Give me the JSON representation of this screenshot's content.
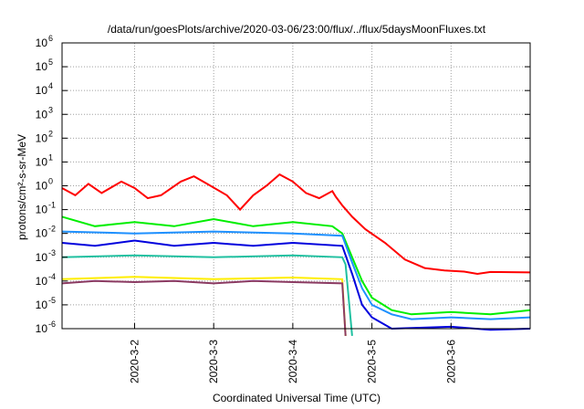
{
  "chart_data": {
    "type": "line",
    "title": "/data/run/goesPlots/archive/2020-03-06/23:00/flux/../flux/5daysMoonFluxes.txt",
    "xlabel": "Coordinated Universal Time (UTC)",
    "ylabel": "protons/cm²-s-sr-MeV",
    "yscale": "log",
    "ylim": [
      1e-06,
      1000000.0
    ],
    "xlim": [
      "2020-03-01T02:00",
      "2020-03-07T00:00"
    ],
    "x_ticks": [
      "2020-3-2",
      "2020-3-3",
      "2020-3-4",
      "2020-3-5",
      "2020-3-6"
    ],
    "y_ticks": [
      {
        "base": "10",
        "exp": "-6"
      },
      {
        "base": "10",
        "exp": "-5"
      },
      {
        "base": "10",
        "exp": "-4"
      },
      {
        "base": "10",
        "exp": "-3"
      },
      {
        "base": "10",
        "exp": "-2"
      },
      {
        "base": "10",
        "exp": "-1"
      },
      {
        "base": "10",
        "exp": "0"
      },
      {
        "base": "10",
        "exp": "1"
      },
      {
        "base": "10",
        "exp": "2"
      },
      {
        "base": "10",
        "exp": "3"
      },
      {
        "base": "10",
        "exp": "4"
      },
      {
        "base": "10",
        "exp": "5"
      },
      {
        "base": "10",
        "exp": "6"
      }
    ],
    "grid": true,
    "series": [
      {
        "color": "#ff0000",
        "points": [
          [
            "2020-03-01T02:00",
            0.8
          ],
          [
            "2020-03-01T06:00",
            0.4
          ],
          [
            "2020-03-01T10:00",
            1.2
          ],
          [
            "2020-03-01T14:00",
            0.5
          ],
          [
            "2020-03-01T20:00",
            1.5
          ],
          [
            "2020-03-02T00:00",
            0.8
          ],
          [
            "2020-03-02T04:00",
            0.3
          ],
          [
            "2020-03-02T08:00",
            0.4
          ],
          [
            "2020-03-02T14:00",
            1.5
          ],
          [
            "2020-03-02T18:00",
            2.5
          ],
          [
            "2020-03-02T22:00",
            1.2
          ],
          [
            "2020-03-03T04:00",
            0.4
          ],
          [
            "2020-03-03T08:00",
            0.1
          ],
          [
            "2020-03-03T12:00",
            0.4
          ],
          [
            "2020-03-03T16:00",
            1.0
          ],
          [
            "2020-03-03T20:00",
            3.0
          ],
          [
            "2020-03-04T00:00",
            1.5
          ],
          [
            "2020-03-04T04:00",
            0.5
          ],
          [
            "2020-03-04T08:00",
            0.3
          ],
          [
            "2020-03-04T12:00",
            0.6
          ],
          [
            "2020-03-04T13:00",
            0.35
          ],
          [
            "2020-03-04T15:00",
            0.15
          ],
          [
            "2020-03-04T18:00",
            0.05
          ],
          [
            "2020-03-04T22:00",
            0.015
          ],
          [
            "2020-03-05T04:00",
            0.004
          ],
          [
            "2020-03-05T10:00",
            0.0008
          ],
          [
            "2020-03-05T16:00",
            0.00035
          ],
          [
            "2020-03-05T22:00",
            0.00028
          ],
          [
            "2020-03-06T04:00",
            0.00025
          ],
          [
            "2020-03-06T08:00",
            0.0002
          ],
          [
            "2020-03-06T12:00",
            0.00024
          ],
          [
            "2020-03-07T00:00",
            0.00023
          ]
        ]
      },
      {
        "color": "#00ee00",
        "points": [
          [
            "2020-03-01T02:00",
            0.05
          ],
          [
            "2020-03-01T12:00",
            0.02
          ],
          [
            "2020-03-02T00:00",
            0.03
          ],
          [
            "2020-03-02T12:00",
            0.02
          ],
          [
            "2020-03-03T00:00",
            0.04
          ],
          [
            "2020-03-03T12:00",
            0.02
          ],
          [
            "2020-03-04T00:00",
            0.03
          ],
          [
            "2020-03-04T12:00",
            0.02
          ],
          [
            "2020-03-04T15:00",
            0.01
          ],
          [
            "2020-03-04T18:00",
            0.001
          ],
          [
            "2020-03-04T21:00",
            0.0001
          ],
          [
            "2020-03-05T00:00",
            2e-05
          ],
          [
            "2020-03-05T06:00",
            6e-06
          ],
          [
            "2020-03-05T12:00",
            4e-06
          ],
          [
            "2020-03-06T00:00",
            5e-06
          ],
          [
            "2020-03-06T12:00",
            4e-06
          ],
          [
            "2020-03-07T00:00",
            6e-06
          ]
        ]
      },
      {
        "color": "#1e90ff",
        "points": [
          [
            "2020-03-01T02:00",
            0.012
          ],
          [
            "2020-03-02T00:00",
            0.01
          ],
          [
            "2020-03-03T00:00",
            0.012
          ],
          [
            "2020-03-04T00:00",
            0.01
          ],
          [
            "2020-03-04T15:00",
            0.008
          ],
          [
            "2020-03-04T18:00",
            0.0006
          ],
          [
            "2020-03-04T21:00",
            5e-05
          ],
          [
            "2020-03-05T00:00",
            1e-05
          ],
          [
            "2020-03-05T06:00",
            4e-06
          ],
          [
            "2020-03-05T12:00",
            2.5e-06
          ],
          [
            "2020-03-06T00:00",
            3e-06
          ],
          [
            "2020-03-06T12:00",
            2.5e-06
          ],
          [
            "2020-03-07T00:00",
            3e-06
          ]
        ]
      },
      {
        "color": "#0000dd",
        "points": [
          [
            "2020-03-01T02:00",
            0.004
          ],
          [
            "2020-03-01T12:00",
            0.003
          ],
          [
            "2020-03-02T00:00",
            0.005
          ],
          [
            "2020-03-02T12:00",
            0.003
          ],
          [
            "2020-03-03T00:00",
            0.004
          ],
          [
            "2020-03-03T12:00",
            0.003
          ],
          [
            "2020-03-04T00:00",
            0.004
          ],
          [
            "2020-03-04T15:00",
            0.003
          ],
          [
            "2020-03-04T18:00",
            0.0002
          ],
          [
            "2020-03-04T21:00",
            1e-05
          ],
          [
            "2020-03-05T00:00",
            3e-06
          ],
          [
            "2020-03-05T06:00",
            1e-06
          ],
          [
            "2020-03-06T00:00",
            1.2e-06
          ],
          [
            "2020-03-06T12:00",
            9e-07
          ],
          [
            "2020-03-07T00:00",
            1e-06
          ]
        ]
      },
      {
        "color": "#20c0a0",
        "points": [
          [
            "2020-03-01T02:00",
            0.001
          ],
          [
            "2020-03-02T00:00",
            0.0012
          ],
          [
            "2020-03-03T00:00",
            0.001
          ],
          [
            "2020-03-04T00:00",
            0.0012
          ],
          [
            "2020-03-04T15:00",
            0.001
          ],
          [
            "2020-03-04T16:00",
            0.0005
          ],
          [
            "2020-03-04T18:00",
            5e-07
          ]
        ]
      },
      {
        "color": "#ffee00",
        "points": [
          [
            "2020-03-01T02:00",
            0.00012
          ],
          [
            "2020-03-02T00:00",
            0.00015
          ],
          [
            "2020-03-03T00:00",
            0.00012
          ],
          [
            "2020-03-04T00:00",
            0.00014
          ],
          [
            "2020-03-04T15:00",
            0.00012
          ],
          [
            "2020-03-04T16:00",
            5e-07
          ]
        ]
      },
      {
        "color": "#8b3a62",
        "points": [
          [
            "2020-03-01T02:00",
            8e-05
          ],
          [
            "2020-03-01T12:00",
            0.0001
          ],
          [
            "2020-03-02T00:00",
            9e-05
          ],
          [
            "2020-03-02T12:00",
            0.0001
          ],
          [
            "2020-03-03T00:00",
            8e-05
          ],
          [
            "2020-03-03T12:00",
            0.0001
          ],
          [
            "2020-03-04T00:00",
            9e-05
          ],
          [
            "2020-03-04T15:00",
            8e-05
          ],
          [
            "2020-03-04T16:00",
            5e-07
          ]
        ]
      }
    ]
  }
}
